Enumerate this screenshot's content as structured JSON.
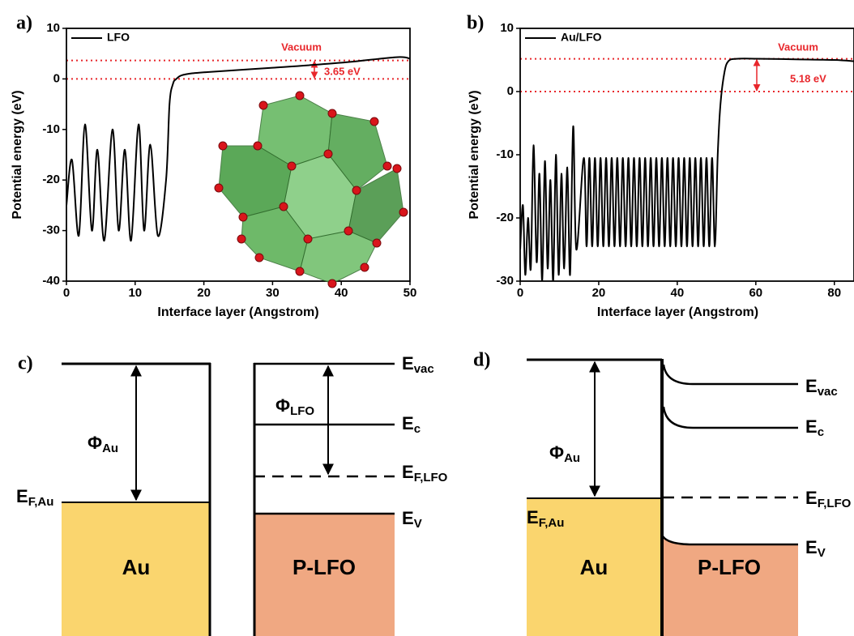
{
  "chart_data": [
    {
      "type": "line",
      "panel_label": "a)",
      "y_label": "Potential energy (eV)",
      "x_label": "Interface layer (Angstrom)",
      "xlim": [
        0,
        50
      ],
      "xticks": [
        0,
        10,
        20,
        30,
        40,
        50
      ],
      "ylim": [
        -40,
        10
      ],
      "yticks": [
        -40,
        -30,
        -20,
        -10,
        0,
        10
      ],
      "x": [
        0,
        0.8,
        1.8,
        2.7,
        3.7,
        4.5,
        5.5,
        6.7,
        7.6,
        8.5,
        9.4,
        10.5,
        11.3,
        12.2,
        13.3,
        14.5,
        15,
        15.5,
        16,
        17,
        20,
        30,
        40,
        48,
        50
      ],
      "series": [
        {
          "name": "LFO",
          "color": "#000000",
          "values": [
            -25,
            -16,
            -31,
            -9,
            -30,
            -14,
            -32,
            -10,
            -30,
            -14,
            -32,
            -9,
            -30,
            -13,
            -31,
            -20,
            -5,
            -1,
            0,
            0.8,
            1.3,
            2.2,
            3.2,
            4.3,
            4.0
          ]
        }
      ],
      "reference_lines": {
        "values": [
          0,
          3.65
        ],
        "color": "#e8262b"
      },
      "annotations": [
        "Vacuum",
        "3.65 eV"
      ],
      "legend": "upper left"
    },
    {
      "type": "line",
      "panel_label": "b)",
      "y_label": "Potential energy (eV)",
      "x_label": "Interface layer (Angstrom)",
      "xlim": [
        0,
        85
      ],
      "xticks": [
        0,
        20,
        40,
        60,
        80
      ],
      "ylim": [
        -30,
        10
      ],
      "yticks": [
        -30,
        -20,
        -10,
        0,
        10
      ],
      "x": [
        0,
        0.7,
        1.3,
        2,
        2.7,
        3.4,
        4.2,
        4.9,
        5.6,
        6.3,
        7,
        7.7,
        8.4,
        9.1,
        9.8,
        10.5,
        11.2,
        12,
        12.7,
        13.5,
        14.3,
        16.2,
        16.91,
        17.62,
        18.33,
        19.04,
        19.75,
        20.46,
        21.17,
        21.88,
        22.59,
        23.3,
        24.01,
        24.72,
        25.43,
        26.14,
        26.85,
        27.56,
        28.27,
        28.98,
        29.69,
        30.4,
        31.11,
        31.82,
        32.53,
        33.24,
        33.95,
        34.66,
        35.37,
        36.08,
        36.79,
        37.5,
        38.21,
        38.92,
        39.63,
        40.34,
        41.05,
        41.76,
        42.47,
        43.18,
        43.89,
        44.6,
        45.31,
        46.02,
        46.73,
        47.44,
        48.15,
        48.86,
        49.57,
        50.3,
        51,
        52,
        53,
        55,
        60,
        70,
        80,
        85
      ],
      "series": [
        {
          "name": "Au/LFO",
          "color": "#000000",
          "values": [
            -25,
            -18,
            -29,
            -20,
            -28,
            -8.5,
            -27,
            -13,
            -30,
            -11,
            -28,
            -14,
            -30,
            -10,
            -29,
            -13,
            -28,
            -12,
            -29,
            -5.5,
            -25,
            -10.5,
            -24.5,
            -10.5,
            -24.5,
            -10.5,
            -24.5,
            -10.5,
            -24.5,
            -10.5,
            -24.5,
            -10.5,
            -24.5,
            -10.5,
            -24.5,
            -10.5,
            -24.5,
            -10.5,
            -24.5,
            -10.5,
            -24.5,
            -10.5,
            -24.5,
            -10.5,
            -24.5,
            -10.5,
            -24.5,
            -10.5,
            -24.5,
            -10.5,
            -24.5,
            -10.5,
            -24.5,
            -10.5,
            -24.5,
            -10.5,
            -24.5,
            -10.5,
            -24.5,
            -10.5,
            -24.5,
            -10.5,
            -24.5,
            -10.5,
            -24.5,
            -10.5,
            -24.5,
            -10.5,
            -24.5,
            -10,
            -2,
            3,
            4.8,
            5.18,
            5.2,
            5.1,
            5.0,
            4.8
          ]
        }
      ],
      "reference_lines": {
        "values": [
          0,
          5.18
        ],
        "color": "#e8262b"
      },
      "annotations": [
        "Vacuum",
        "5.18 eV"
      ],
      "legend": "upper left"
    }
  ],
  "diagrams": [
    {
      "panel_label": "c)",
      "metal": {
        "name": "Au",
        "work_function": {
          "symbol": "Φ",
          "subscript": "Au"
        },
        "fermi_level": {
          "symbol": "E",
          "subscript": "F,Au"
        }
      },
      "semiconductor": {
        "name": "P-LFO",
        "work_function": {
          "symbol": "Φ",
          "subscript": "LFO"
        },
        "levels": [
          {
            "symbol": "E",
            "subscript": "vac"
          },
          {
            "symbol": "E",
            "subscript": "c"
          },
          {
            "symbol": "E",
            "subscript": "F,LFO"
          },
          {
            "symbol": "E",
            "subscript": "V"
          }
        ]
      }
    },
    {
      "panel_label": "d)",
      "metal": {
        "name": "Au",
        "work_function": {
          "symbol": "Φ",
          "subscript": "Au"
        },
        "fermi_level": {
          "symbol": "E",
          "subscript": "F,Au"
        }
      },
      "semiconductor": {
        "name": "P-LFO",
        "levels": [
          {
            "symbol": "E",
            "subscript": "vac"
          },
          {
            "symbol": "E",
            "subscript": "c"
          },
          {
            "symbol": "E",
            "subscript": "F,LFO"
          },
          {
            "symbol": "E",
            "subscript": "V"
          }
        ]
      }
    }
  ]
}
